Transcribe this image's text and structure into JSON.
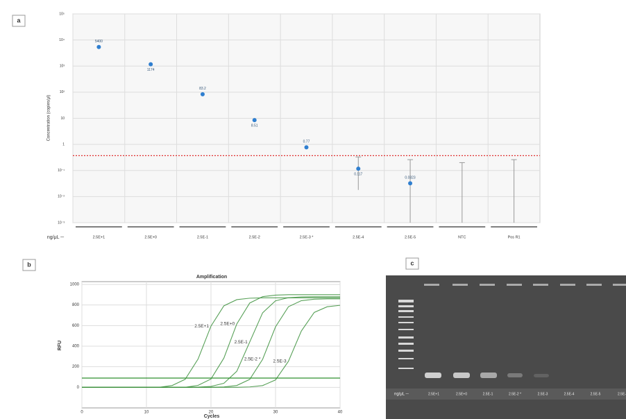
{
  "chart_data": [
    {
      "type": "scatter",
      "panel": "a",
      "categories": [
        "2.5E+1",
        "2.5E+0",
        "2.5E-1",
        "2.5E-2",
        "2.5E-3 *",
        "2.5E-4",
        "2.5E-5",
        "NTC",
        "Pos R1"
      ],
      "x_axis_label": "ng/μL ─",
      "y_axis_label": "Concentration (copies/μl)",
      "values": [
        5400,
        1174,
        83.2,
        8.51,
        0.77,
        0.117,
        0.0323,
        null,
        null
      ],
      "error_upper": [
        null,
        null,
        null,
        null,
        null,
        0.33,
        0.26,
        0.2,
        0.26
      ],
      "error_lower": [
        null,
        null,
        null,
        null,
        null,
        0.018,
        0.001,
        0.001,
        0.001
      ],
      "color": "#2f7fd0",
      "log_y": true,
      "ylim": [
        0.001,
        100000
      ],
      "yticks": [
        {
          "value": 0.001,
          "label": "10⁻³"
        },
        {
          "value": 0.01,
          "label": "10⁻²"
        },
        {
          "value": 0.1,
          "label": "10⁻¹"
        },
        1,
        10,
        {
          "value": 100,
          "label": "10²"
        },
        {
          "value": 1000,
          "label": "10³"
        },
        {
          "value": 10000,
          "label": "10⁴"
        },
        {
          "value": 100000,
          "label": "10⁵"
        }
      ],
      "threshold": 0.37,
      "threshold_color": "#e03030",
      "grid": true
    },
    {
      "type": "line",
      "panel": "b",
      "title": "Amplification",
      "x_label": "Cycles",
      "y_label": "RFU",
      "x": [
        0,
        2,
        4,
        6,
        8,
        10,
        12,
        14,
        16,
        18,
        20,
        22,
        24,
        26,
        28,
        30,
        32,
        34,
        36,
        38,
        40
      ],
      "series": [
        {
          "name": "2.5E+1",
          "color": "#3a8f3a",
          "values": [
            0,
            0,
            0,
            0,
            0,
            0,
            0,
            18,
            78,
            275,
            595,
            792,
            852,
            866,
            870,
            870,
            870,
            870,
            870,
            870,
            870
          ]
        },
        {
          "name": "2.5E+0",
          "color": "#3a8f3a",
          "values": [
            0,
            0,
            0,
            0,
            0,
            0,
            0,
            0,
            0,
            19,
            81,
            284,
            616,
            819,
            881,
            896,
            900,
            900,
            900,
            900,
            900
          ]
        },
        {
          "name": "2.5E-1",
          "color": "#3a8f3a",
          "values": [
            0,
            0,
            0,
            0,
            0,
            0,
            0,
            0,
            0,
            2,
            9,
            39,
            156,
            440,
            724,
            841,
            871,
            878,
            880,
            880,
            880
          ]
        },
        {
          "name": "2.5E-2 *",
          "color": "#3a8f3a",
          "values": [
            0,
            0,
            0,
            0,
            0,
            0,
            0,
            0,
            0,
            0,
            0,
            4,
            18,
            77,
            272,
            588,
            783,
            842,
            856,
            860,
            860
          ]
        },
        {
          "name": "2.5E-3",
          "color": "#3a8f3a",
          "values": [
            0,
            0,
            0,
            0,
            0,
            0,
            0,
            0,
            0,
            0,
            0,
            0,
            0,
            4,
            17,
            72,
            253,
            547,
            728,
            783,
            797
          ]
        }
      ],
      "xlim": [
        0,
        40
      ],
      "xticks": [
        0,
        10,
        20,
        30,
        40
      ],
      "ylim": [
        -200,
        1000
      ],
      "yticks": [
        0,
        200,
        400,
        600,
        800,
        1000
      ],
      "threshold": 90,
      "threshold_color": "#2f8f2f",
      "grid": true
    }
  ],
  "gel": {
    "panel": "c",
    "row_label": "ng/μL ─",
    "lanes": [
      "2.5E+1",
      "2.5E+0",
      "2.5E-1",
      "2.5E-2 *",
      "2.5E-3",
      "2.5E-4",
      "2.5E-5",
      "2.5E-"
    ]
  }
}
